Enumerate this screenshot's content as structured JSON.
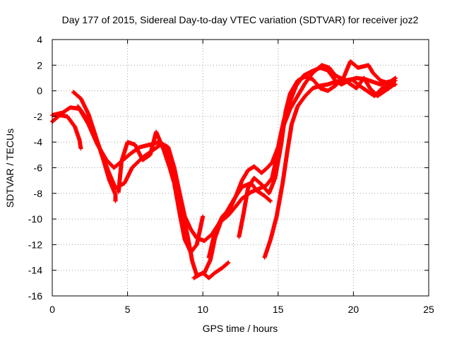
{
  "chart_data": {
    "type": "scatter",
    "title": "Day 177 of 2015, Sidereal Day-to-day VTEC variation (SDTVAR) for receiver joz2",
    "xlabel": "GPS time / hours",
    "ylabel": "SDTVAR / TECUs",
    "xlim": [
      0,
      25
    ],
    "ylim": [
      -16,
      4
    ],
    "xticks": [
      "0",
      "5",
      "10",
      "15",
      "20",
      "25"
    ],
    "yticks": [
      "-16",
      "-14",
      "-12",
      "-10",
      "-8",
      "-6",
      "-4",
      "-2",
      "0",
      "2",
      "4"
    ],
    "grid": true,
    "marker": "plus",
    "colors": {
      "series": "#ff0000",
      "grid": "#a0a0a0",
      "axis": "#000000"
    },
    "series": [
      {
        "values": [
          [
            0,
            -2.4
          ],
          [
            0.5,
            -1.9
          ],
          [
            1.0,
            -2.0
          ],
          [
            1.5,
            -2.8
          ],
          [
            1.8,
            -3.8
          ],
          [
            1.9,
            -4.5
          ]
        ]
      },
      {
        "values": [
          [
            0,
            -1.9
          ],
          [
            0.7,
            -1.7
          ],
          [
            1.2,
            -1.3
          ],
          [
            1.8,
            -1.4
          ],
          [
            2.4,
            -2.6
          ],
          [
            3.0,
            -4.2
          ],
          [
            3.6,
            -5.4
          ],
          [
            4.1,
            -6.0
          ],
          [
            4.6,
            -5.5
          ],
          [
            5.2,
            -4.9
          ],
          [
            5.8,
            -4.4
          ],
          [
            6.5,
            -4.2
          ],
          [
            7.1,
            -4.0
          ],
          [
            7.7,
            -4.4
          ],
          [
            8.1,
            -6.0
          ],
          [
            8.5,
            -8.2
          ],
          [
            8.8,
            -9.8
          ],
          [
            9.2,
            -10.8
          ],
          [
            9.6,
            -11.5
          ],
          [
            10.1,
            -11.7
          ],
          [
            10.6,
            -11.2
          ],
          [
            11.1,
            -10.3
          ],
          [
            11.7,
            -9.7
          ],
          [
            12.2,
            -9.0
          ],
          [
            12.6,
            -8.4
          ],
          [
            13.2,
            -7.9
          ],
          [
            13.8,
            -7.6
          ],
          [
            14.2,
            -7.4
          ],
          [
            14.6,
            -6.8
          ],
          [
            14.9,
            -5.2
          ],
          [
            15.1,
            -3.8
          ],
          [
            15.4,
            -2.2
          ],
          [
            15.8,
            -0.8
          ],
          [
            16.2,
            0.4
          ],
          [
            16.7,
            1.2
          ],
          [
            17.2,
            1.5
          ],
          [
            17.8,
            1.8
          ],
          [
            18.3,
            1.6
          ],
          [
            18.8,
            0.8
          ],
          [
            19.2,
            0.5
          ],
          [
            19.7,
            0.8
          ],
          [
            20.2,
            1.0
          ],
          [
            20.8,
            0.9
          ],
          [
            21.3,
            0.7
          ],
          [
            21.8,
            0.5
          ],
          [
            22.3,
            0.7
          ],
          [
            22.8,
            0.8
          ]
        ]
      },
      {
        "values": [
          [
            1.4,
            -0.1
          ],
          [
            1.9,
            -0.6
          ],
          [
            2.4,
            -1.8
          ],
          [
            2.9,
            -3.6
          ],
          [
            3.4,
            -5.4
          ],
          [
            3.8,
            -7.0
          ],
          [
            4.2,
            -8.1
          ],
          [
            4.2,
            -8.6
          ]
        ]
      },
      {
        "values": [
          [
            1.7,
            -1.2
          ],
          [
            2.2,
            -2.0
          ],
          [
            2.7,
            -3.2
          ],
          [
            3.2,
            -4.6
          ],
          [
            3.7,
            -6.2
          ],
          [
            4.2,
            -7.6
          ],
          [
            4.8,
            -7.2
          ],
          [
            5.3,
            -6.0
          ],
          [
            6.0,
            -5.2
          ],
          [
            6.6,
            -4.7
          ],
          [
            7.2,
            -4.2
          ],
          [
            7.8,
            -5.0
          ],
          [
            8.2,
            -7.2
          ],
          [
            8.6,
            -9.2
          ],
          [
            9.0,
            -11.4
          ],
          [
            9.3,
            -13.3
          ],
          [
            9.6,
            -14.4
          ],
          [
            10.1,
            -14.2
          ],
          [
            10.5,
            -13.2
          ],
          [
            10.8,
            -11.5
          ],
          [
            11.2,
            -10.2
          ],
          [
            11.6,
            -9.4
          ],
          [
            12.1,
            -8.4
          ],
          [
            12.6,
            -7.5
          ],
          [
            13.2,
            -7.2
          ],
          [
            13.6,
            -7.8
          ],
          [
            14.1,
            -8.2
          ],
          [
            14.5,
            -8.6
          ]
        ]
      },
      {
        "values": [
          [
            4.4,
            -7.9
          ],
          [
            4.6,
            -5.5
          ],
          [
            5.0,
            -4.0
          ],
          [
            5.5,
            -4.2
          ],
          [
            6.0,
            -5.4
          ],
          [
            6.5,
            -5.0
          ],
          [
            6.9,
            -3.2
          ],
          [
            7.4,
            -4.6
          ],
          [
            7.8,
            -6.0
          ],
          [
            8.1,
            -7.2
          ],
          [
            8.5,
            -9.8
          ],
          [
            8.8,
            -11.6
          ],
          [
            9.2,
            -12.6
          ],
          [
            9.6,
            -12.0
          ],
          [
            10.0,
            -9.8
          ]
        ]
      },
      {
        "values": [
          [
            9.4,
            -14.6
          ],
          [
            10.0,
            -14.2
          ],
          [
            10.4,
            -14.6
          ],
          [
            10.8,
            -14.2
          ],
          [
            11.3,
            -13.8
          ],
          [
            11.7,
            -13.4
          ]
        ]
      },
      {
        "values": [
          [
            10.4,
            -13.0
          ],
          [
            10.8,
            -11.0
          ],
          [
            11.3,
            -9.8
          ],
          [
            11.8,
            -9.2
          ],
          [
            12.2,
            -8.2
          ],
          [
            12.6,
            -7.0
          ],
          [
            13.0,
            -6.2
          ],
          [
            13.4,
            -5.9
          ],
          [
            13.9,
            -6.4
          ],
          [
            14.2,
            -6.1
          ],
          [
            14.6,
            -5.6
          ],
          [
            15.0,
            -4.4
          ],
          [
            15.4,
            -2.6
          ],
          [
            15.8,
            -1.4
          ],
          [
            16.2,
            -0.6
          ],
          [
            16.8,
            0.6
          ],
          [
            17.3,
            1.4
          ],
          [
            17.9,
            2.0
          ],
          [
            18.4,
            1.8
          ],
          [
            18.8,
            1.2
          ],
          [
            19.3,
            0.9
          ],
          [
            19.8,
            2.3
          ],
          [
            20.3,
            1.8
          ],
          [
            21.0,
            2.0
          ],
          [
            21.3,
            1.4
          ],
          [
            21.8,
            0.8
          ],
          [
            22.3,
            0.6
          ],
          [
            22.8,
            1.0
          ]
        ]
      },
      {
        "values": [
          [
            14.1,
            -13.0
          ],
          [
            14.5,
            -11.6
          ],
          [
            14.9,
            -9.8
          ],
          [
            15.3,
            -7.2
          ],
          [
            15.6,
            -4.8
          ],
          [
            15.9,
            -2.6
          ],
          [
            16.3,
            -1.2
          ],
          [
            16.8,
            -0.4
          ],
          [
            17.3,
            0.2
          ],
          [
            17.8,
            0.4
          ],
          [
            18.3,
            0.5
          ],
          [
            18.8,
            0.7
          ],
          [
            19.4,
            0.8
          ],
          [
            19.9,
            0.9
          ],
          [
            20.4,
            0.4
          ],
          [
            20.9,
            0.0
          ],
          [
            21.4,
            -0.4
          ],
          [
            21.9,
            0.2
          ],
          [
            22.4,
            0.4
          ],
          [
            22.8,
            0.5
          ]
        ]
      },
      {
        "values": [
          [
            12.4,
            -11.4
          ],
          [
            12.7,
            -9.6
          ],
          [
            13.0,
            -7.6
          ],
          [
            13.4,
            -6.8
          ],
          [
            13.9,
            -7.3
          ],
          [
            14.4,
            -8.0
          ],
          [
            14.8,
            -6.8
          ],
          [
            15.2,
            -4.2
          ],
          [
            15.5,
            -1.6
          ],
          [
            15.8,
            -0.2
          ],
          [
            16.3,
            0.8
          ],
          [
            16.8,
            1.1
          ],
          [
            17.3,
            0.9
          ],
          [
            17.8,
            0.2
          ],
          [
            18.3,
            0.0
          ],
          [
            18.8,
            0.4
          ],
          [
            19.3,
            1.0
          ],
          [
            19.7,
            0.6
          ],
          [
            20.2,
            0.2
          ],
          [
            20.7,
            1.0
          ],
          [
            21.1,
            0.2
          ],
          [
            21.6,
            -0.4
          ],
          [
            22.1,
            0.0
          ],
          [
            22.6,
            0.4
          ]
        ]
      }
    ]
  }
}
